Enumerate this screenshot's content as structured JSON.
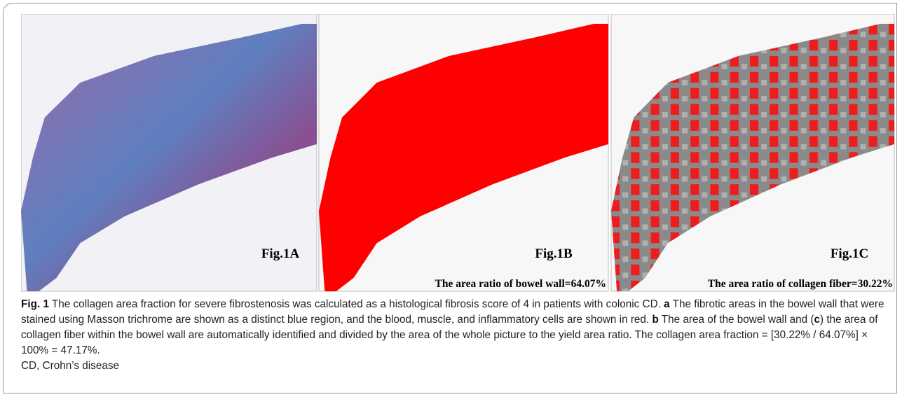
{
  "figure": {
    "panels": [
      {
        "label": "Fig.1A"
      },
      {
        "label": "Fig.1B",
        "ratio_text": "The area ratio of bowel wall=64.07%"
      },
      {
        "label": "Fig.1C",
        "ratio_text": "The area ratio of collagen fiber=30.22%"
      }
    ],
    "caption": {
      "parts": [
        "Fig. 1",
        " The collagen area fraction for severe fibrostenosis was calculated as a histological fibrosis score of 4 in patients with colonic CD. ",
        "a",
        " The fibrotic areas in the bowel wall that were stained using Masson trichrome are shown as a distinct blue region, and the blood, muscle, and inflammatory cells are shown in red. ",
        "b",
        " The area of the bowel wall and (",
        "c",
        ") the area of collagen fiber within the bowel wall are automatically identified and divided by the area of the whole picture to the yield area ratio. The collagen area fraction = [30.22% / 64.07%] × 100% = 47.17%."
      ],
      "footnote": "CD, Crohn’s disease"
    }
  }
}
